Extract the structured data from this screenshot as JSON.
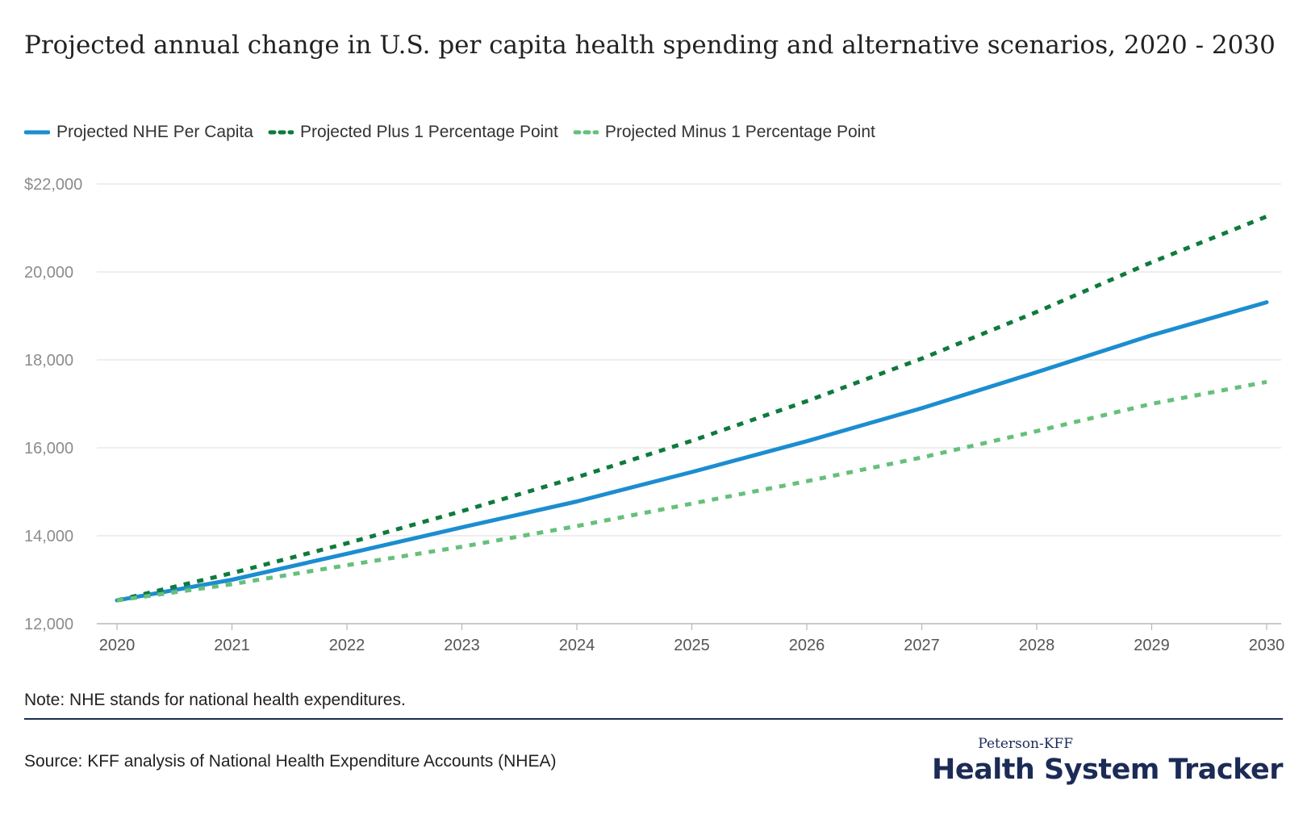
{
  "title": "Projected annual change in U.S. per capita health spending and alternative scenarios, 2020 - 2030",
  "legend": [
    {
      "label": "Projected NHE Per Capita",
      "color": "#1c8dd0",
      "style": "solid"
    },
    {
      "label": "Projected Plus 1 Percentage Point",
      "color": "#0f7a3c",
      "style": "dashed"
    },
    {
      "label": "Projected Minus 1 Percentage Point",
      "color": "#66c07a",
      "style": "dashed"
    }
  ],
  "chart_data": {
    "type": "line",
    "title": "Projected annual change in U.S. per capita health spending and alternative scenarios, 2020 - 2030",
    "xlabel": "",
    "ylabel": "",
    "x": [
      2020,
      2021,
      2022,
      2023,
      2024,
      2025,
      2026,
      2027,
      2028,
      2029,
      2030
    ],
    "y_ticks": [
      12000,
      14000,
      16000,
      18000,
      20000,
      22000
    ],
    "y_tick_labels": [
      "12,000",
      "14,000",
      "16,000",
      "18,000",
      "20,000",
      "$22,000"
    ],
    "ylim": [
      12000,
      22000
    ],
    "grid": true,
    "legend_position": "top-left",
    "series": [
      {
        "name": "Projected NHE Per Capita",
        "color": "#1c8dd0",
        "style": "solid",
        "values": [
          12530,
          13000,
          13590,
          14190,
          14780,
          15450,
          16150,
          16900,
          17720,
          18560,
          19310
        ]
      },
      {
        "name": "Projected Plus 1 Percentage Point",
        "color": "#0f7a3c",
        "style": "dashed",
        "values": [
          12530,
          13150,
          13830,
          14560,
          15330,
          16160,
          17060,
          18030,
          19090,
          20220,
          21260
        ]
      },
      {
        "name": "Projected Minus 1 Percentage Point",
        "color": "#66c07a",
        "style": "dashed",
        "values": [
          12530,
          12900,
          13330,
          13750,
          14220,
          14730,
          15240,
          15780,
          16380,
          17000,
          17500
        ]
      }
    ]
  },
  "note": "Note: NHE stands for national health expenditures.",
  "source": "Source: KFF analysis of National Health Expenditure Accounts (NHEA)",
  "branding": {
    "top": "Peterson-KFF",
    "main": "Health System Tracker"
  }
}
